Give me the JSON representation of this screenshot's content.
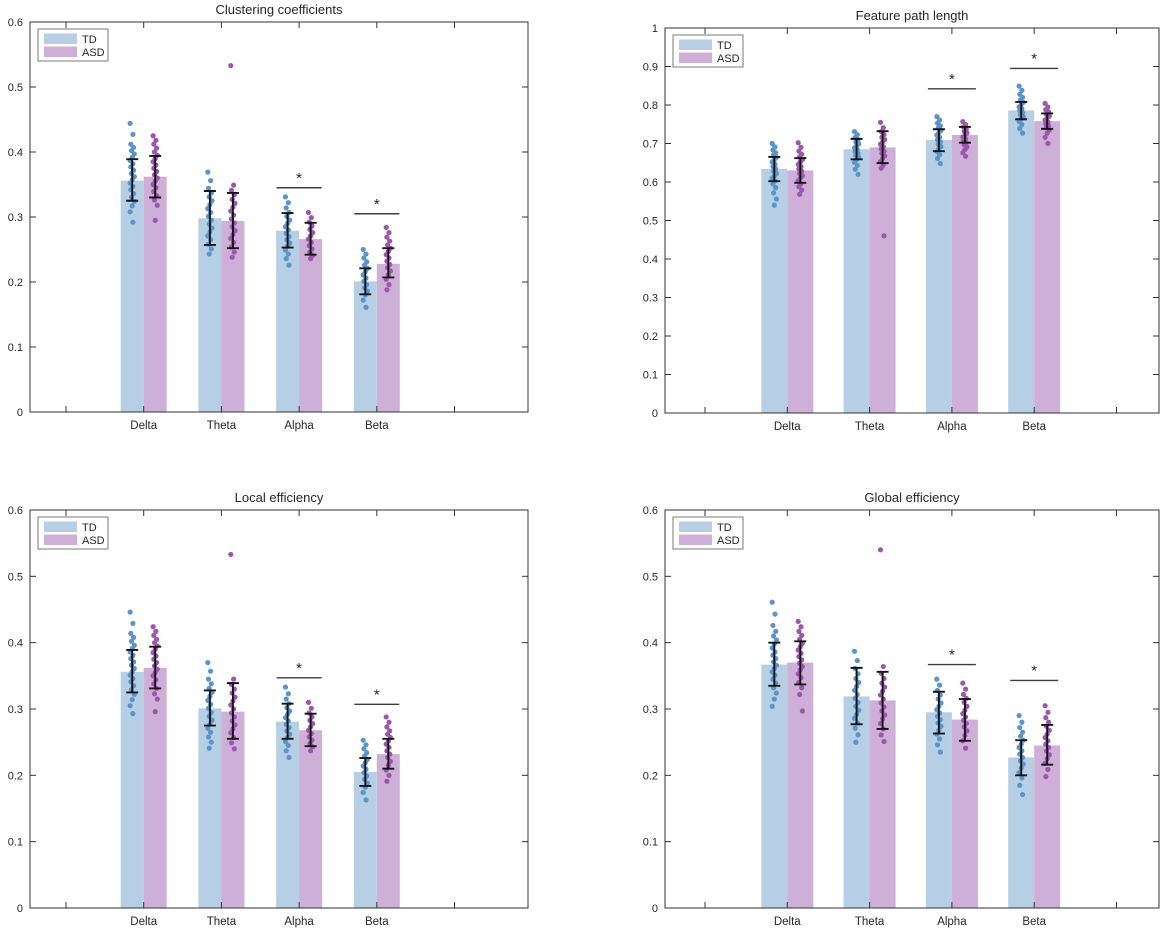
{
  "figure_type": "matlab-style 2x2 grouped bar figure with scatter overlay, error bars and significance markers",
  "sig_symbol": "*",
  "colors": {
    "background": "#ffffff",
    "td_bar": "#b7cfe4",
    "asd_bar": "#ceafd8",
    "td_dot": "#5b94cb",
    "asd_dot": "#9c57ad",
    "error_bar": "#141414",
    "sig_line": "#3d3d3d",
    "axis": "#333333",
    "legend_border": "#7a7a7a"
  },
  "chart_data": [
    {
      "type": "bar",
      "title": "Clustering coefficients",
      "categories": [
        "Delta",
        "Theta",
        "Alpha",
        "Beta"
      ],
      "ylim": [
        0,
        0.6
      ],
      "yticks": [
        0,
        0.1,
        0.2,
        0.3,
        0.4,
        0.5,
        0.6
      ],
      "legend_position": "top-left",
      "series": [
        {
          "name": "TD",
          "values": [
            0.356,
            0.298,
            0.279,
            0.201
          ],
          "err_lo": [
            0.325,
            0.257,
            0.253,
            0.181
          ],
          "err_hi": [
            0.389,
            0.34,
            0.306,
            0.221
          ],
          "dots": [
            [
              0.444,
              0.427,
              0.412,
              0.407,
              0.402,
              0.397,
              0.392,
              0.387,
              0.382,
              0.377,
              0.372,
              0.367,
              0.362,
              0.357,
              0.352,
              0.347,
              0.342,
              0.336,
              0.33,
              0.324,
              0.317,
              0.308,
              0.292
            ],
            [
              0.369,
              0.356,
              0.344,
              0.337,
              0.331,
              0.325,
              0.319,
              0.313,
              0.307,
              0.301,
              0.295,
              0.289,
              0.283,
              0.277,
              0.271,
              0.265,
              0.258,
              0.251,
              0.243
            ],
            [
              0.331,
              0.322,
              0.314,
              0.307,
              0.301,
              0.295,
              0.29,
              0.285,
              0.28,
              0.275,
              0.27,
              0.265,
              0.26,
              0.255,
              0.249,
              0.243,
              0.236,
              0.226
            ],
            [
              0.25,
              0.243,
              0.237,
              0.231,
              0.226,
              0.221,
              0.216,
              0.211,
              0.206,
              0.201,
              0.196,
              0.191,
              0.186,
              0.18,
              0.172,
              0.161
            ]
          ]
        },
        {
          "name": "ASD",
          "values": [
            0.362,
            0.294,
            0.266,
            0.228
          ],
          "err_lo": [
            0.33,
            0.252,
            0.242,
            0.207
          ],
          "err_hi": [
            0.394,
            0.337,
            0.291,
            0.252
          ],
          "dots": [
            [
              0.425,
              0.418,
              0.412,
              0.406,
              0.4,
              0.395,
              0.39,
              0.385,
              0.38,
              0.375,
              0.37,
              0.365,
              0.36,
              0.355,
              0.35,
              0.345,
              0.339,
              0.333,
              0.326,
              0.318,
              0.295
            ],
            [
              0.533,
              0.349,
              0.341,
              0.334,
              0.327,
              0.321,
              0.315,
              0.309,
              0.303,
              0.297,
              0.291,
              0.285,
              0.279,
              0.273,
              0.267,
              0.261,
              0.254,
              0.246,
              0.238
            ],
            [
              0.307,
              0.299,
              0.292,
              0.286,
              0.281,
              0.276,
              0.271,
              0.266,
              0.261,
              0.256,
              0.251,
              0.246,
              0.241,
              0.236
            ],
            [
              0.284,
              0.276,
              0.269,
              0.263,
              0.257,
              0.252,
              0.247,
              0.242,
              0.237,
              0.232,
              0.227,
              0.222,
              0.217,
              0.211,
              0.204,
              0.196,
              0.188
            ]
          ]
        }
      ],
      "significance": [
        {
          "category": "Alpha",
          "line_y": 0.345
        },
        {
          "category": "Beta",
          "line_y": 0.305
        }
      ]
    },
    {
      "type": "bar",
      "title": "Feature path length",
      "categories": [
        "Delta",
        "Theta",
        "Alpha",
        "Beta"
      ],
      "ylim": [
        0,
        1
      ],
      "yticks": [
        0,
        0.1,
        0.2,
        0.3,
        0.4,
        0.5,
        0.6,
        0.7,
        0.8,
        0.9,
        1
      ],
      "legend_position": "top-left",
      "series": [
        {
          "name": "TD",
          "values": [
            0.634,
            0.685,
            0.709,
            0.786
          ],
          "err_lo": [
            0.602,
            0.659,
            0.68,
            0.763
          ],
          "err_hi": [
            0.665,
            0.712,
            0.737,
            0.808
          ],
          "dots": [
            [
              0.7,
              0.691,
              0.683,
              0.676,
              0.67,
              0.664,
              0.658,
              0.652,
              0.646,
              0.64,
              0.634,
              0.628,
              0.622,
              0.616,
              0.61,
              0.603,
              0.595,
              0.585,
              0.572,
              0.556,
              0.54
            ],
            [
              0.731,
              0.723,
              0.716,
              0.71,
              0.704,
              0.699,
              0.694,
              0.689,
              0.684,
              0.679,
              0.674,
              0.669,
              0.664,
              0.658,
              0.651,
              0.643,
              0.633,
              0.62
            ],
            [
              0.77,
              0.761,
              0.753,
              0.746,
              0.74,
              0.734,
              0.728,
              0.722,
              0.716,
              0.71,
              0.704,
              0.698,
              0.692,
              0.686,
              0.679,
              0.671,
              0.661,
              0.648
            ],
            [
              0.849,
              0.838,
              0.828,
              0.82,
              0.813,
              0.807,
              0.801,
              0.795,
              0.79,
              0.785,
              0.78,
              0.775,
              0.77,
              0.764,
              0.757,
              0.749,
              0.739,
              0.727
            ]
          ]
        },
        {
          "name": "ASD",
          "values": [
            0.63,
            0.69,
            0.722,
            0.758
          ],
          "err_lo": [
            0.598,
            0.649,
            0.702,
            0.738
          ],
          "err_hi": [
            0.662,
            0.732,
            0.743,
            0.778
          ],
          "dots": [
            [
              0.702,
              0.69,
              0.68,
              0.672,
              0.665,
              0.658,
              0.652,
              0.646,
              0.64,
              0.634,
              0.628,
              0.622,
              0.616,
              0.61,
              0.603,
              0.596,
              0.588,
              0.579,
              0.568
            ],
            [
              0.755,
              0.741,
              0.731,
              0.723,
              0.716,
              0.71,
              0.704,
              0.698,
              0.692,
              0.686,
              0.68,
              0.674,
              0.668,
              0.661,
              0.653,
              0.644,
              0.636,
              0.46
            ],
            [
              0.757,
              0.749,
              0.743,
              0.737,
              0.732,
              0.727,
              0.722,
              0.717,
              0.712,
              0.707,
              0.702,
              0.697,
              0.691,
              0.684,
              0.676,
              0.667
            ],
            [
              0.804,
              0.795,
              0.788,
              0.782,
              0.776,
              0.771,
              0.766,
              0.761,
              0.756,
              0.751,
              0.746,
              0.741,
              0.735,
              0.727,
              0.716,
              0.7
            ]
          ]
        }
      ],
      "significance": [
        {
          "category": "Alpha",
          "line_y": 0.842
        },
        {
          "category": "Beta",
          "line_y": 0.895
        }
      ]
    },
    {
      "type": "bar",
      "title": "Local efficiency",
      "categories": [
        "Delta",
        "Theta",
        "Alpha",
        "Beta"
      ],
      "ylim": [
        0,
        0.6
      ],
      "yticks": [
        0,
        0.1,
        0.2,
        0.3,
        0.4,
        0.5,
        0.6
      ],
      "legend_position": "top-left",
      "series": [
        {
          "name": "TD",
          "values": [
            0.356,
            0.301,
            0.281,
            0.205
          ],
          "err_lo": [
            0.325,
            0.275,
            0.255,
            0.184
          ],
          "err_hi": [
            0.389,
            0.328,
            0.308,
            0.226
          ],
          "dots": [
            [
              0.446,
              0.429,
              0.414,
              0.408,
              0.402,
              0.396,
              0.391,
              0.386,
              0.381,
              0.376,
              0.371,
              0.366,
              0.361,
              0.356,
              0.351,
              0.346,
              0.341,
              0.335,
              0.329,
              0.322,
              0.314,
              0.305,
              0.293
            ],
            [
              0.37,
              0.357,
              0.345,
              0.338,
              0.331,
              0.325,
              0.319,
              0.313,
              0.307,
              0.301,
              0.295,
              0.289,
              0.283,
              0.277,
              0.271,
              0.265,
              0.258,
              0.25,
              0.241
            ],
            [
              0.333,
              0.323,
              0.315,
              0.308,
              0.302,
              0.297,
              0.292,
              0.287,
              0.282,
              0.277,
              0.272,
              0.267,
              0.262,
              0.257,
              0.251,
              0.245,
              0.237,
              0.227
            ],
            [
              0.253,
              0.246,
              0.24,
              0.234,
              0.229,
              0.224,
              0.219,
              0.214,
              0.209,
              0.204,
              0.199,
              0.194,
              0.188,
              0.182,
              0.174,
              0.163
            ]
          ]
        },
        {
          "name": "ASD",
          "values": [
            0.362,
            0.296,
            0.268,
            0.232
          ],
          "err_lo": [
            0.331,
            0.255,
            0.244,
            0.21
          ],
          "err_hi": [
            0.394,
            0.339,
            0.293,
            0.255
          ],
          "dots": [
            [
              0.424,
              0.417,
              0.411,
              0.405,
              0.4,
              0.395,
              0.39,
              0.385,
              0.38,
              0.375,
              0.37,
              0.365,
              0.36,
              0.355,
              0.35,
              0.344,
              0.338,
              0.331,
              0.323,
              0.315,
              0.296
            ],
            [
              0.533,
              0.345,
              0.337,
              0.33,
              0.324,
              0.318,
              0.312,
              0.306,
              0.3,
              0.294,
              0.288,
              0.282,
              0.276,
              0.27,
              0.264,
              0.257,
              0.249,
              0.24
            ],
            [
              0.31,
              0.301,
              0.294,
              0.288,
              0.283,
              0.278,
              0.273,
              0.268,
              0.263,
              0.258,
              0.253,
              0.248,
              0.243,
              0.237
            ],
            [
              0.288,
              0.28,
              0.273,
              0.267,
              0.262,
              0.257,
              0.252,
              0.247,
              0.242,
              0.237,
              0.232,
              0.227,
              0.221,
              0.215,
              0.208,
              0.2,
              0.191
            ]
          ]
        }
      ],
      "significance": [
        {
          "category": "Alpha",
          "line_y": 0.347
        },
        {
          "category": "Beta",
          "line_y": 0.307
        }
      ]
    },
    {
      "type": "bar",
      "title": "Global efficiency",
      "categories": [
        "Delta",
        "Theta",
        "Alpha",
        "Beta"
      ],
      "ylim": [
        0,
        0.6
      ],
      "yticks": [
        0,
        0.1,
        0.2,
        0.3,
        0.4,
        0.5,
        0.6
      ],
      "legend_position": "top-left",
      "series": [
        {
          "name": "TD",
          "values": [
            0.367,
            0.319,
            0.295,
            0.227
          ],
          "err_lo": [
            0.335,
            0.277,
            0.263,
            0.2
          ],
          "err_hi": [
            0.4,
            0.362,
            0.326,
            0.253
          ],
          "dots": [
            [
              0.461,
              0.443,
              0.426,
              0.417,
              0.41,
              0.404,
              0.398,
              0.392,
              0.386,
              0.381,
              0.376,
              0.371,
              0.366,
              0.361,
              0.356,
              0.351,
              0.345,
              0.339,
              0.332,
              0.324,
              0.315,
              0.304
            ],
            [
              0.387,
              0.373,
              0.361,
              0.353,
              0.346,
              0.34,
              0.334,
              0.328,
              0.322,
              0.316,
              0.31,
              0.304,
              0.298,
              0.292,
              0.286,
              0.279,
              0.271,
              0.261,
              0.25
            ],
            [
              0.345,
              0.336,
              0.328,
              0.321,
              0.315,
              0.309,
              0.304,
              0.299,
              0.294,
              0.289,
              0.284,
              0.279,
              0.274,
              0.268,
              0.262,
              0.255,
              0.246,
              0.235
            ],
            [
              0.29,
              0.28,
              0.272,
              0.265,
              0.259,
              0.253,
              0.247,
              0.242,
              0.237,
              0.232,
              0.227,
              0.222,
              0.217,
              0.211,
              0.204,
              0.196,
              0.185,
              0.171
            ]
          ]
        },
        {
          "name": "ASD",
          "values": [
            0.37,
            0.313,
            0.284,
            0.245
          ],
          "err_lo": [
            0.337,
            0.27,
            0.252,
            0.216
          ],
          "err_hi": [
            0.402,
            0.356,
            0.315,
            0.276
          ],
          "dots": [
            [
              0.432,
              0.424,
              0.417,
              0.411,
              0.405,
              0.399,
              0.394,
              0.389,
              0.384,
              0.379,
              0.374,
              0.369,
              0.364,
              0.359,
              0.353,
              0.347,
              0.34,
              0.332,
              0.322,
              0.297
            ],
            [
              0.54,
              0.364,
              0.354,
              0.346,
              0.339,
              0.333,
              0.327,
              0.321,
              0.315,
              0.309,
              0.303,
              0.297,
              0.291,
              0.285,
              0.278,
              0.27,
              0.261,
              0.251
            ],
            [
              0.339,
              0.33,
              0.322,
              0.316,
              0.31,
              0.304,
              0.298,
              0.293,
              0.288,
              0.283,
              0.278,
              0.273,
              0.267,
              0.26,
              0.252,
              0.241
            ],
            [
              0.305,
              0.295,
              0.287,
              0.28,
              0.274,
              0.268,
              0.262,
              0.257,
              0.252,
              0.247,
              0.242,
              0.237,
              0.231,
              0.225,
              0.218,
              0.209,
              0.198
            ]
          ]
        }
      ],
      "significance": [
        {
          "category": "Alpha",
          "line_y": 0.367
        },
        {
          "category": "Beta",
          "line_y": 0.343
        }
      ]
    }
  ]
}
